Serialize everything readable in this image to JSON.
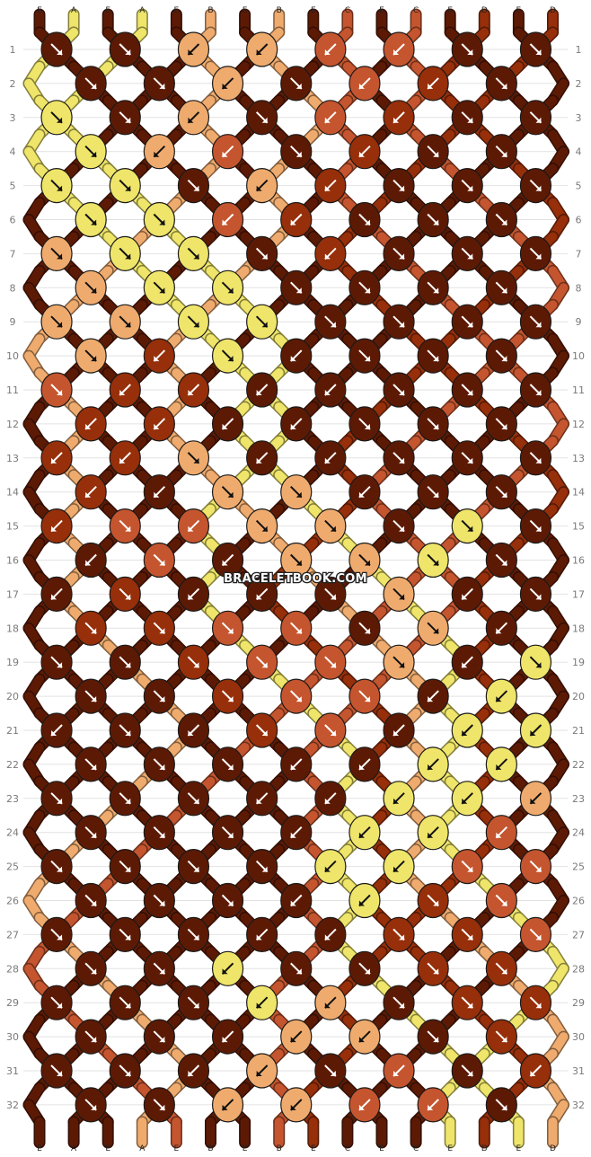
{
  "watermark": "BRACELETBOOK.COM",
  "colors": {
    "E": "#5c1a05",
    "A": "#efe56a",
    "B": "#efab6e",
    "C": "#c4552f",
    "D": "#962f0a"
  },
  "strands_top": [
    "E",
    "A",
    "E",
    "A",
    "E",
    "B",
    "E",
    "B",
    "E",
    "C",
    "E",
    "C",
    "E",
    "D",
    "E",
    "D"
  ],
  "strands_bottom": [
    "E",
    "A",
    "E",
    "A",
    "E",
    "B",
    "E",
    "B",
    "E",
    "C",
    "E",
    "C",
    "E",
    "D",
    "E",
    "D"
  ],
  "row_labels": [
    "1",
    "2",
    "3",
    "4",
    "5",
    "6",
    "7",
    "8",
    "9",
    "10",
    "11",
    "12",
    "13",
    "14",
    "15",
    "16",
    "17",
    "18",
    "19",
    "20",
    "21",
    "22",
    "23",
    "24",
    "25",
    "26",
    "27",
    "28",
    "29",
    "30",
    "31",
    "32"
  ],
  "knot_rows": [
    [
      [
        "E",
        "f"
      ],
      [
        "E",
        "f"
      ],
      [
        "B",
        "b"
      ],
      [
        "B",
        "b"
      ],
      [
        "C",
        "b"
      ],
      [
        "C",
        "b"
      ],
      [
        "E",
        "f"
      ],
      [
        "E",
        "f"
      ]
    ],
    [
      [
        "E",
        "f"
      ],
      [
        "E",
        "f"
      ],
      [
        "B",
        "b"
      ],
      [
        "E",
        "f"
      ],
      [
        "C",
        "b"
      ],
      [
        "D",
        "b"
      ],
      [
        "E",
        "f"
      ]
    ],
    [
      [
        "A",
        "f"
      ],
      [
        "E",
        "f"
      ],
      [
        "B",
        "b"
      ],
      [
        "E",
        "f"
      ],
      [
        "C",
        "b"
      ],
      [
        "D",
        "b"
      ],
      [
        "E",
        "f"
      ],
      [
        "E",
        "f"
      ]
    ],
    [
      [
        "A",
        "f"
      ],
      [
        "B",
        "b"
      ],
      [
        "C",
        "b"
      ],
      [
        "E",
        "f"
      ],
      [
        "D",
        "b"
      ],
      [
        "E",
        "f"
      ],
      [
        "E",
        "f"
      ]
    ],
    [
      [
        "A",
        "f"
      ],
      [
        "A",
        "f"
      ],
      [
        "E",
        "f"
      ],
      [
        "B",
        "b"
      ],
      [
        "D",
        "b"
      ],
      [
        "E",
        "f"
      ],
      [
        "E",
        "f"
      ],
      [
        "E",
        "f"
      ]
    ],
    [
      [
        "A",
        "f"
      ],
      [
        "A",
        "f"
      ],
      [
        "C",
        "b"
      ],
      [
        "D",
        "b"
      ],
      [
        "E",
        "f"
      ],
      [
        "E",
        "f"
      ],
      [
        "E",
        "f"
      ]
    ],
    [
      [
        "B",
        "f"
      ],
      [
        "A",
        "f"
      ],
      [
        "A",
        "f"
      ],
      [
        "E",
        "f"
      ],
      [
        "D",
        "b"
      ],
      [
        "E",
        "f"
      ],
      [
        "E",
        "f"
      ],
      [
        "E",
        "f"
      ]
    ],
    [
      [
        "B",
        "f"
      ],
      [
        "A",
        "f"
      ],
      [
        "A",
        "f"
      ],
      [
        "E",
        "f"
      ],
      [
        "E",
        "f"
      ],
      [
        "E",
        "f"
      ],
      [
        "E",
        "f"
      ]
    ],
    [
      [
        "B",
        "f"
      ],
      [
        "B",
        "f"
      ],
      [
        "A",
        "f"
      ],
      [
        "A",
        "f"
      ],
      [
        "E",
        "f"
      ],
      [
        "E",
        "f"
      ],
      [
        "E",
        "f"
      ],
      [
        "E",
        "f"
      ]
    ],
    [
      [
        "B",
        "f"
      ],
      [
        "D",
        "b"
      ],
      [
        "A",
        "f"
      ],
      [
        "E",
        "b"
      ],
      [
        "E",
        "f"
      ],
      [
        "E",
        "f"
      ],
      [
        "E",
        "f"
      ]
    ],
    [
      [
        "C",
        "f"
      ],
      [
        "D",
        "b"
      ],
      [
        "D",
        "b"
      ],
      [
        "E",
        "b"
      ],
      [
        "E",
        "b"
      ],
      [
        "E",
        "f"
      ],
      [
        "E",
        "f"
      ],
      [
        "E",
        "f"
      ]
    ],
    [
      [
        "D",
        "b"
      ],
      [
        "D",
        "b"
      ],
      [
        "E",
        "b"
      ],
      [
        "E",
        "b"
      ],
      [
        "E",
        "f"
      ],
      [
        "E",
        "f"
      ],
      [
        "E",
        "f"
      ]
    ],
    [
      [
        "D",
        "b"
      ],
      [
        "D",
        "b"
      ],
      [
        "B",
        "f"
      ],
      [
        "E",
        "b"
      ],
      [
        "E",
        "b"
      ],
      [
        "E",
        "f"
      ],
      [
        "E",
        "f"
      ],
      [
        "E",
        "f"
      ]
    ],
    [
      [
        "D",
        "b"
      ],
      [
        "E",
        "b"
      ],
      [
        "B",
        "f"
      ],
      [
        "B",
        "f"
      ],
      [
        "E",
        "b"
      ],
      [
        "E",
        "f"
      ],
      [
        "E",
        "f"
      ]
    ],
    [
      [
        "D",
        "b"
      ],
      [
        "C",
        "f"
      ],
      [
        "C",
        "b"
      ],
      [
        "B",
        "f"
      ],
      [
        "B",
        "f"
      ],
      [
        "E",
        "f"
      ],
      [
        "A",
        "f"
      ],
      [
        "E",
        "f"
      ]
    ],
    [
      [
        "E",
        "b"
      ],
      [
        "C",
        "f"
      ],
      [
        "E",
        "b"
      ],
      [
        "B",
        "f"
      ],
      [
        "B",
        "f"
      ],
      [
        "A",
        "f"
      ],
      [
        "E",
        "f"
      ]
    ],
    [
      [
        "E",
        "b"
      ],
      [
        "D",
        "f"
      ],
      [
        "E",
        "b"
      ],
      [
        "E",
        "b"
      ],
      [
        "E",
        "f"
      ],
      [
        "B",
        "f"
      ],
      [
        "E",
        "b"
      ],
      [
        "E",
        "f"
      ]
    ],
    [
      [
        "D",
        "f"
      ],
      [
        "D",
        "f"
      ],
      [
        "C",
        "f"
      ],
      [
        "C",
        "f"
      ],
      [
        "E",
        "f"
      ],
      [
        "B",
        "f"
      ],
      [
        "E",
        "b"
      ]
    ],
    [
      [
        "E",
        "f"
      ],
      [
        "E",
        "f"
      ],
      [
        "D",
        "f"
      ],
      [
        "C",
        "f"
      ],
      [
        "C",
        "f"
      ],
      [
        "B",
        "f"
      ],
      [
        "E",
        "b"
      ],
      [
        "A",
        "f"
      ]
    ],
    [
      [
        "E",
        "f"
      ],
      [
        "E",
        "f"
      ],
      [
        "D",
        "f"
      ],
      [
        "C",
        "f"
      ],
      [
        "C",
        "f"
      ],
      [
        "E",
        "b"
      ],
      [
        "A",
        "b"
      ]
    ],
    [
      [
        "E",
        "b"
      ],
      [
        "E",
        "f"
      ],
      [
        "E",
        "b"
      ],
      [
        "D",
        "f"
      ],
      [
        "C",
        "f"
      ],
      [
        "E",
        "b"
      ],
      [
        "A",
        "b"
      ],
      [
        "A",
        "b"
      ]
    ],
    [
      [
        "E",
        "f"
      ],
      [
        "E",
        "f"
      ],
      [
        "E",
        "f"
      ],
      [
        "E",
        "b"
      ],
      [
        "E",
        "b"
      ],
      [
        "A",
        "b"
      ],
      [
        "A",
        "b"
      ]
    ],
    [
      [
        "E",
        "f"
      ],
      [
        "E",
        "f"
      ],
      [
        "E",
        "f"
      ],
      [
        "E",
        "b"
      ],
      [
        "E",
        "b"
      ],
      [
        "A",
        "b"
      ],
      [
        "A",
        "b"
      ],
      [
        "B",
        "b"
      ]
    ],
    [
      [
        "E",
        "f"
      ],
      [
        "E",
        "f"
      ],
      [
        "E",
        "f"
      ],
      [
        "E",
        "b"
      ],
      [
        "A",
        "b"
      ],
      [
        "A",
        "b"
      ],
      [
        "C",
        "b"
      ]
    ],
    [
      [
        "E",
        "f"
      ],
      [
        "E",
        "f"
      ],
      [
        "E",
        "f"
      ],
      [
        "E",
        "f"
      ],
      [
        "A",
        "b"
      ],
      [
        "A",
        "b"
      ],
      [
        "C",
        "f"
      ],
      [
        "C",
        "f"
      ]
    ],
    [
      [
        "E",
        "f"
      ],
      [
        "E",
        "f"
      ],
      [
        "E",
        "f"
      ],
      [
        "E",
        "b"
      ],
      [
        "A",
        "b"
      ],
      [
        "D",
        "f"
      ],
      [
        "C",
        "f"
      ]
    ],
    [
      [
        "E",
        "f"
      ],
      [
        "E",
        "f"
      ],
      [
        "E",
        "f"
      ],
      [
        "E",
        "b"
      ],
      [
        "E",
        "b"
      ],
      [
        "D",
        "f"
      ],
      [
        "D",
        "f"
      ],
      [
        "C",
        "f"
      ]
    ],
    [
      [
        "E",
        "f"
      ],
      [
        "E",
        "f"
      ],
      [
        "A",
        "b"
      ],
      [
        "E",
        "f"
      ],
      [
        "E",
        "f"
      ],
      [
        "D",
        "f"
      ],
      [
        "D",
        "f"
      ]
    ],
    [
      [
        "E",
        "f"
      ],
      [
        "E",
        "f"
      ],
      [
        "E",
        "f"
      ],
      [
        "A",
        "b"
      ],
      [
        "B",
        "b"
      ],
      [
        "E",
        "f"
      ],
      [
        "D",
        "f"
      ],
      [
        "D",
        "f"
      ]
    ],
    [
      [
        "E",
        "f"
      ],
      [
        "E",
        "f"
      ],
      [
        "E",
        "b"
      ],
      [
        "B",
        "b"
      ],
      [
        "B",
        "b"
      ],
      [
        "E",
        "f"
      ],
      [
        "D",
        "f"
      ]
    ],
    [
      [
        "E",
        "f"
      ],
      [
        "E",
        "f"
      ],
      [
        "E",
        "b"
      ],
      [
        "B",
        "b"
      ],
      [
        "E",
        "f"
      ],
      [
        "C",
        "b"
      ],
      [
        "E",
        "f"
      ],
      [
        "D",
        "b"
      ]
    ],
    [
      [
        "E",
        "f"
      ],
      [
        "E",
        "f"
      ],
      [
        "B",
        "b"
      ],
      [
        "B",
        "b"
      ],
      [
        "C",
        "b"
      ],
      [
        "C",
        "b"
      ],
      [
        "E",
        "f"
      ]
    ]
  ]
}
